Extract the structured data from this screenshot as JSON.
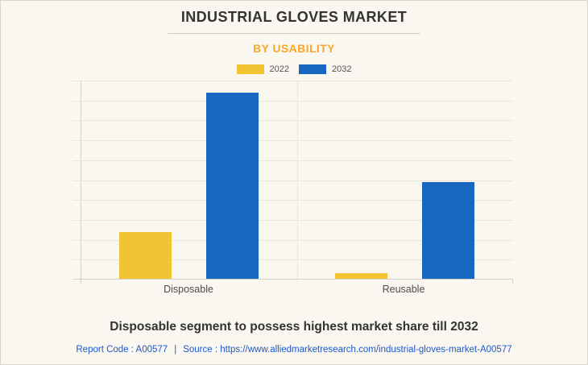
{
  "page": {
    "title": "INDUSTRIAL GLOVES MARKET",
    "subtitle": "BY USABILITY",
    "headline": "Disposable segment to possess highest market share till 2032",
    "footer": {
      "report_code": "Report Code : A00577",
      "separator": "|",
      "source": "Source : https://www.alliedmarketresearch.com/industrial-gloves-market-A00577"
    }
  },
  "colors": {
    "background": "#F9F7F0",
    "page_border": "#D7D5CE",
    "title_text": "#333333",
    "divider": "#CBC8C1",
    "subtitle_accent": "#F9A72B",
    "series_2022": "#F2C433",
    "series_2032": "#1767C2",
    "gridline": "#E9E6DE",
    "axis": "#D4D1C9",
    "link_blue": "#2057C9"
  },
  "chart_data": {
    "type": "bar",
    "title": "Industrial Gloves Market — By Usability",
    "categories": [
      "Disposable",
      "Reusable"
    ],
    "series": [
      {
        "name": "2022",
        "color": "#F2C433",
        "values": [
          2.35,
          0.3
        ]
      },
      {
        "name": "2032",
        "color": "#1767C2",
        "values": [
          9.35,
          4.85
        ]
      }
    ],
    "ylim": [
      0,
      10
    ],
    "gridline_intervals": 10,
    "y_axis_tick_labels_visible": false,
    "legend_position": "top",
    "grid": true
  }
}
